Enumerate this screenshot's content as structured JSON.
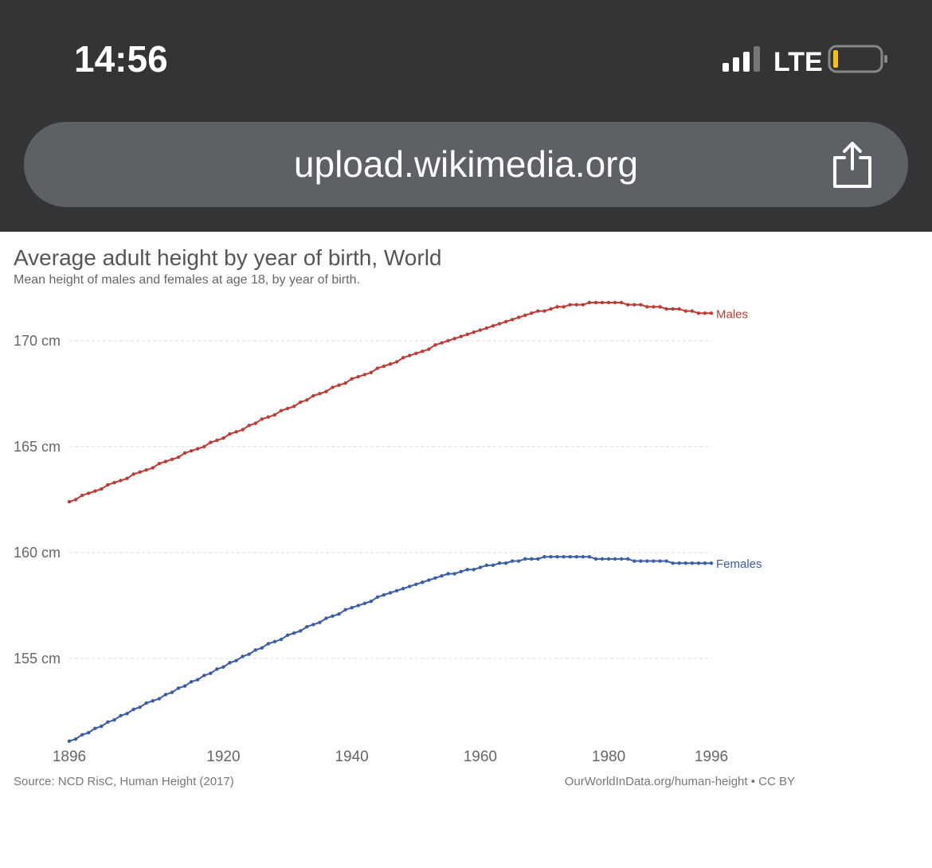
{
  "status_bar": {
    "time": "14:56",
    "network": "LTE"
  },
  "url_bar": {
    "url": "upload.wikimedia.org"
  },
  "chart_data": {
    "type": "line",
    "title": "Average adult height by year of birth, World",
    "subtitle": "Mean height of males and females at age 18, by year of birth.",
    "source": "Source: NCD RisC, Human Height (2017)",
    "credit": "OurWorldInData.org/human-height • CC BY",
    "x": [
      1896,
      1897,
      1898,
      1899,
      1900,
      1901,
      1902,
      1903,
      1904,
      1905,
      1906,
      1907,
      1908,
      1909,
      1910,
      1911,
      1912,
      1913,
      1914,
      1915,
      1916,
      1917,
      1918,
      1919,
      1920,
      1921,
      1922,
      1923,
      1924,
      1925,
      1926,
      1927,
      1928,
      1929,
      1930,
      1931,
      1932,
      1933,
      1934,
      1935,
      1936,
      1937,
      1938,
      1939,
      1940,
      1941,
      1942,
      1943,
      1944,
      1945,
      1946,
      1947,
      1948,
      1949,
      1950,
      1951,
      1952,
      1953,
      1954,
      1955,
      1956,
      1957,
      1958,
      1959,
      1960,
      1961,
      1962,
      1963,
      1964,
      1965,
      1966,
      1967,
      1968,
      1969,
      1970,
      1971,
      1972,
      1973,
      1974,
      1975,
      1976,
      1977,
      1978,
      1979,
      1980,
      1981,
      1982,
      1983,
      1984,
      1985,
      1986,
      1987,
      1988,
      1989,
      1990,
      1991,
      1992,
      1993,
      1994,
      1995,
      1996
    ],
    "series": [
      {
        "name": "Males",
        "color": "#be3b35",
        "values": [
          162.4,
          162.5,
          162.7,
          162.8,
          162.9,
          163.0,
          163.2,
          163.3,
          163.4,
          163.5,
          163.7,
          163.8,
          163.9,
          164.0,
          164.2,
          164.3,
          164.4,
          164.5,
          164.7,
          164.8,
          164.9,
          165.0,
          165.2,
          165.3,
          165.4,
          165.6,
          165.7,
          165.8,
          166.0,
          166.1,
          166.3,
          166.4,
          166.5,
          166.7,
          166.8,
          166.9,
          167.1,
          167.2,
          167.4,
          167.5,
          167.6,
          167.8,
          167.9,
          168.0,
          168.2,
          168.3,
          168.4,
          168.5,
          168.7,
          168.8,
          168.9,
          169.0,
          169.2,
          169.3,
          169.4,
          169.5,
          169.6,
          169.8,
          169.9,
          170.0,
          170.1,
          170.2,
          170.3,
          170.4,
          170.5,
          170.6,
          170.7,
          170.8,
          170.9,
          171.0,
          171.1,
          171.2,
          171.3,
          171.4,
          171.4,
          171.5,
          171.6,
          171.6,
          171.7,
          171.7,
          171.7,
          171.8,
          171.8,
          171.8,
          171.8,
          171.8,
          171.8,
          171.7,
          171.7,
          171.7,
          171.6,
          171.6,
          171.6,
          171.5,
          171.5,
          171.5,
          171.4,
          171.4,
          171.3,
          171.3,
          171.3
        ]
      },
      {
        "name": "Females",
        "color": "#3a5da6",
        "values": [
          151.1,
          151.2,
          151.4,
          151.5,
          151.7,
          151.8,
          152.0,
          152.1,
          152.3,
          152.4,
          152.6,
          152.7,
          152.9,
          153.0,
          153.1,
          153.3,
          153.4,
          153.6,
          153.7,
          153.9,
          154.0,
          154.2,
          154.3,
          154.5,
          154.6,
          154.8,
          154.9,
          155.1,
          155.2,
          155.4,
          155.5,
          155.7,
          155.8,
          155.9,
          156.1,
          156.2,
          156.3,
          156.5,
          156.6,
          156.7,
          156.9,
          157.0,
          157.1,
          157.3,
          157.4,
          157.5,
          157.6,
          157.7,
          157.9,
          158.0,
          158.1,
          158.2,
          158.3,
          158.4,
          158.5,
          158.6,
          158.7,
          158.8,
          158.9,
          159.0,
          159.0,
          159.1,
          159.2,
          159.2,
          159.3,
          159.4,
          159.4,
          159.5,
          159.5,
          159.6,
          159.6,
          159.7,
          159.7,
          159.7,
          159.8,
          159.8,
          159.8,
          159.8,
          159.8,
          159.8,
          159.8,
          159.8,
          159.7,
          159.7,
          159.7,
          159.7,
          159.7,
          159.7,
          159.6,
          159.6,
          159.6,
          159.6,
          159.6,
          159.6,
          159.5,
          159.5,
          159.5,
          159.5,
          159.5,
          159.5,
          159.5
        ]
      }
    ],
    "xlim": [
      1896,
      1996
    ],
    "xticks": [
      1896,
      1920,
      1940,
      1960,
      1980,
      1996
    ],
    "ylim": [
      150.9,
      172.1
    ],
    "yticks": [
      {
        "value": 155,
        "label": "155 cm"
      },
      {
        "value": 160,
        "label": "160 cm"
      },
      {
        "value": 165,
        "label": "165 cm"
      },
      {
        "value": 170,
        "label": "170 cm"
      }
    ],
    "grid": true
  }
}
